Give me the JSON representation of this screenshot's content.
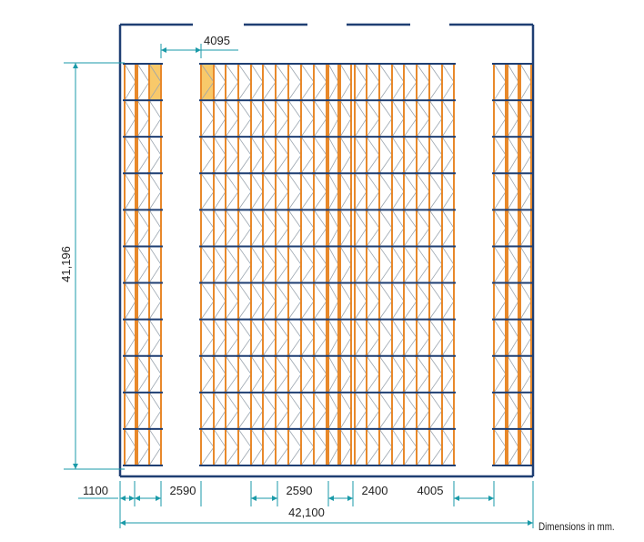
{
  "drawing": {
    "note": "Dimensions in mm.",
    "dimensions": {
      "bay_depth": "4095",
      "total_depth": "41,196",
      "aisle_side": "1100",
      "aisle_1": "2590",
      "aisle_2": "2590",
      "aisle_3": "2400",
      "aisle_4": "4005",
      "total_width": "42,100"
    },
    "colors": {
      "wall": "#1f3f73",
      "upright": "#e8892b",
      "bracing": "#9aa4ae",
      "beam": "#1f3f73",
      "dimension": "#1a9aa8",
      "highlight": "#f8c96a"
    }
  }
}
